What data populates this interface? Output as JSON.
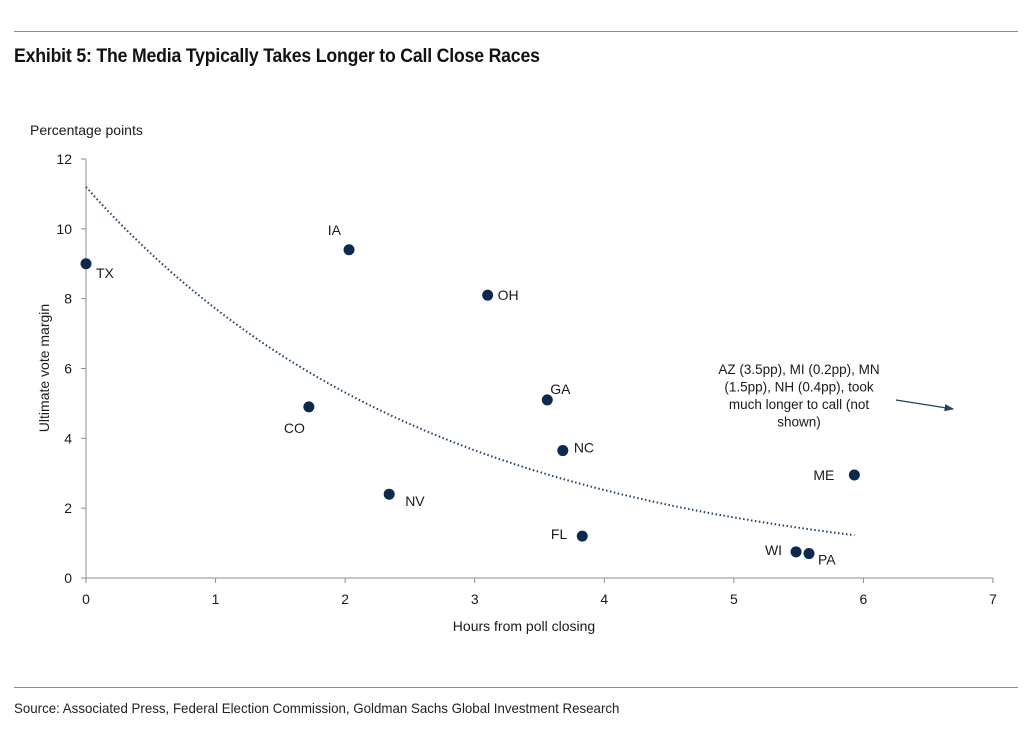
{
  "title": "Exhibit 5: The Media Typically Takes Longer to Call Close Races",
  "source": "Source: Associated Press, Federal Election Commission, Goldman Sachs Global Investment Research",
  "colors": {
    "marker": "#0d2a4e",
    "trendline": "#1f3f66",
    "axis": "#8c8c8c"
  },
  "chart_data": {
    "type": "scatter",
    "title": "",
    "xlabel": "Hours from poll closing",
    "ylabel": "Ultimate vote margin",
    "yunit": "Percentage points",
    "xlim": [
      0,
      7
    ],
    "ylim": [
      0,
      12
    ],
    "xticks": [
      0,
      1,
      2,
      3,
      4,
      5,
      6,
      7
    ],
    "yticks": [
      0,
      2,
      4,
      6,
      8,
      10,
      12
    ],
    "grid": false,
    "legend": "none",
    "points": [
      {
        "label": "TX",
        "x": 0.0,
        "y": 9.0
      },
      {
        "label": "IA",
        "x": 2.03,
        "y": 9.4
      },
      {
        "label": "OH",
        "x": 3.1,
        "y": 8.1
      },
      {
        "label": "CO",
        "x": 1.72,
        "y": 4.9
      },
      {
        "label": "GA",
        "x": 3.56,
        "y": 5.1
      },
      {
        "label": "NC",
        "x": 3.68,
        "y": 3.65
      },
      {
        "label": "NV",
        "x": 2.34,
        "y": 2.4
      },
      {
        "label": "FL",
        "x": 3.83,
        "y": 1.2
      },
      {
        "label": "ME",
        "x": 5.93,
        "y": 2.95
      },
      {
        "label": "WI",
        "x": 5.48,
        "y": 0.75
      },
      {
        "label": "PA",
        "x": 5.58,
        "y": 0.7
      }
    ],
    "trendline": {
      "type": "exponential",
      "a": 11.2,
      "b": -0.373,
      "x_range": [
        0,
        5.93
      ],
      "style": "dotted"
    },
    "annotation": {
      "lines": [
        "AZ (3.5pp), MI (0.2pp), MN",
        "(1.5pp), NH (0.4pp), took",
        "much longer to call (not",
        "shown)"
      ]
    }
  }
}
